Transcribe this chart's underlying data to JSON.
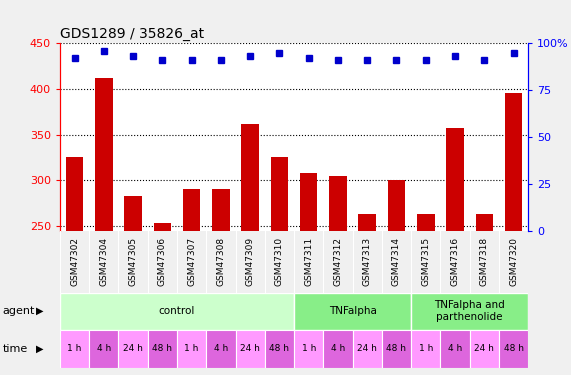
{
  "title": "GDS1289 / 35826_at",
  "samples": [
    "GSM47302",
    "GSM47304",
    "GSM47305",
    "GSM47306",
    "GSM47307",
    "GSM47308",
    "GSM47309",
    "GSM47310",
    "GSM47311",
    "GSM47312",
    "GSM47313",
    "GSM47314",
    "GSM47315",
    "GSM47316",
    "GSM47318",
    "GSM47320"
  ],
  "count_values": [
    325,
    412,
    283,
    253,
    290,
    291,
    362,
    325,
    308,
    305,
    263,
    300,
    263,
    357,
    263,
    395
  ],
  "percentile_values": [
    92,
    96,
    93,
    91,
    91,
    91,
    93,
    95,
    92,
    91,
    91,
    91,
    91,
    93,
    91,
    95
  ],
  "ylim_left": [
    245,
    450
  ],
  "ylim_right": [
    0,
    100
  ],
  "yticks_left": [
    250,
    300,
    350,
    400,
    450
  ],
  "yticks_right": [
    0,
    25,
    50,
    75,
    100
  ],
  "bar_color": "#cc0000",
  "dot_color": "#0000cc",
  "agent_groups": [
    {
      "label": "control",
      "start": 0,
      "end": 8,
      "color": "#ccffcc"
    },
    {
      "label": "TNFalpha",
      "start": 8,
      "end": 12,
      "color": "#88ee88"
    },
    {
      "label": "TNFalpha and\nparthenolide",
      "start": 12,
      "end": 16,
      "color": "#88ee88"
    }
  ],
  "time_colors": [
    "#ff99ff",
    "#dd66dd",
    "#ff99ff",
    "#dd66dd",
    "#ff99ff",
    "#dd66dd",
    "#ff99ff",
    "#dd66dd",
    "#ff99ff",
    "#dd66dd",
    "#ff99ff",
    "#dd66dd",
    "#ff99ff",
    "#dd66dd",
    "#ff99ff",
    "#dd66dd"
  ],
  "time_labels": [
    "1 h",
    "4 h",
    "24 h",
    "48 h",
    "1 h",
    "4 h",
    "24 h",
    "48 h",
    "1 h",
    "4 h",
    "24 h",
    "48 h",
    "1 h",
    "4 h",
    "24 h",
    "48 h"
  ],
  "legend_bar_color": "#cc0000",
  "legend_dot_color": "#0000cc",
  "fig_bg_color": "#f0f0f0",
  "plot_bg_color": "#ffffff",
  "sample_band_color": "#cccccc"
}
